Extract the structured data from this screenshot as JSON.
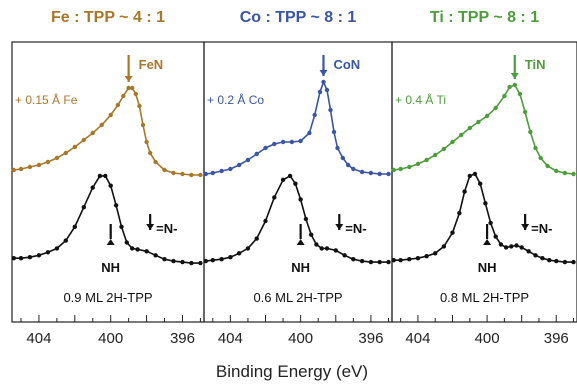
{
  "figure": {
    "xlabel": "Binding Energy (eV)"
  },
  "chart_data": [
    {
      "type": "line",
      "title": "Fe : TPP ~ 4 : 1",
      "xlabel": "Binding Energy (eV)",
      "ylabel": "",
      "xlim": [
        405.5,
        394.8
      ],
      "x_ticks": [
        "404",
        "400",
        "396"
      ],
      "x_tick_values": [
        404,
        400,
        396
      ],
      "color": "#a8782a",
      "annotations": {
        "metal": "+ 0.15 Å Fe",
        "nitride": "FeN",
        "nh": "NH",
        "imine": "=N-",
        "sample": "0.9 ML 2H-TPP"
      },
      "series": [
        {
          "name": "",
          "role": "metal-dosed",
          "x": [
            405.4,
            405.0,
            404.5,
            404.0,
            403.5,
            403.0,
            402.5,
            402.0,
            401.5,
            401.0,
            400.5,
            400.0,
            399.6,
            399.3,
            399.0,
            398.8,
            398.6,
            398.4,
            398.2,
            398.0,
            397.8,
            397.5,
            397.0,
            396.5,
            396.0,
            395.5,
            395.0
          ],
          "values": [
            0.1,
            0.11,
            0.13,
            0.15,
            0.18,
            0.22,
            0.27,
            0.33,
            0.4,
            0.47,
            0.55,
            0.65,
            0.75,
            0.84,
            0.92,
            0.92,
            0.86,
            0.74,
            0.55,
            0.38,
            0.27,
            0.18,
            0.1,
            0.07,
            0.06,
            0.05,
            0.05
          ]
        },
        {
          "name": "",
          "role": "pristine",
          "x": [
            405.4,
            405.0,
            404.5,
            404.0,
            403.5,
            403.0,
            402.5,
            402.0,
            401.5,
            401.0,
            400.6,
            400.3,
            400.0,
            399.7,
            399.4,
            399.1,
            398.8,
            398.5,
            398.0,
            397.5,
            397.0,
            396.5,
            396.0,
            395.5,
            395.0
          ],
          "values": [
            0.1,
            0.1,
            0.11,
            0.13,
            0.16,
            0.2,
            0.28,
            0.42,
            0.62,
            0.82,
            0.94,
            0.94,
            0.84,
            0.64,
            0.42,
            0.26,
            0.2,
            0.19,
            0.17,
            0.13,
            0.09,
            0.07,
            0.06,
            0.05,
            0.05
          ]
        }
      ]
    },
    {
      "type": "line",
      "title": "Co : TPP ~ 8 : 1",
      "xlabel": "Binding Energy (eV)",
      "ylabel": "",
      "xlim": [
        405.5,
        394.8
      ],
      "x_ticks": [
        "404",
        "400",
        "396"
      ],
      "x_tick_values": [
        404,
        400,
        396
      ],
      "color": "#3a55a4",
      "annotations": {
        "metal": "+ 0.2 Å Co",
        "nitride": "CoN",
        "nh": "NH",
        "imine": "=N-",
        "sample": "0.6 ML 2H-TPP"
      },
      "series": [
        {
          "name": "",
          "role": "metal-dosed",
          "x": [
            405.4,
            405.0,
            404.5,
            404.0,
            403.5,
            403.0,
            402.5,
            402.0,
            401.5,
            401.0,
            400.5,
            400.0,
            399.5,
            399.2,
            398.9,
            398.7,
            398.5,
            398.3,
            398.1,
            397.9,
            397.6,
            397.3,
            397.0,
            396.5,
            396.0,
            395.5,
            395.0
          ],
          "values": [
            0.06,
            0.07,
            0.09,
            0.11,
            0.15,
            0.2,
            0.26,
            0.32,
            0.36,
            0.38,
            0.38,
            0.39,
            0.47,
            0.65,
            0.88,
            0.98,
            0.9,
            0.7,
            0.48,
            0.32,
            0.22,
            0.15,
            0.11,
            0.08,
            0.07,
            0.06,
            0.06
          ]
        },
        {
          "name": "",
          "role": "pristine",
          "x": [
            405.4,
            405.0,
            404.5,
            404.0,
            403.5,
            403.0,
            402.5,
            402.0,
            401.5,
            401.0,
            400.6,
            400.3,
            400.0,
            399.7,
            399.4,
            399.1,
            398.8,
            398.5,
            398.0,
            397.5,
            397.0,
            396.5,
            396.0,
            395.5,
            395.0
          ],
          "values": [
            0.07,
            0.08,
            0.09,
            0.11,
            0.15,
            0.2,
            0.3,
            0.48,
            0.72,
            0.9,
            0.94,
            0.86,
            0.7,
            0.5,
            0.34,
            0.24,
            0.2,
            0.2,
            0.18,
            0.13,
            0.09,
            0.07,
            0.06,
            0.06,
            0.06
          ]
        }
      ]
    },
    {
      "type": "line",
      "title": "Ti : TPP ~ 8 : 1",
      "xlabel": "Binding Energy (eV)",
      "ylabel": "",
      "xlim": [
        405.5,
        394.8
      ],
      "x_ticks": [
        "404",
        "400",
        "396"
      ],
      "x_tick_values": [
        404,
        400,
        396
      ],
      "color": "#4e9d3c",
      "annotations": {
        "metal": "+ 0.4 Å Ti",
        "nitride": "TiN",
        "nh": "NH",
        "imine": "=N-",
        "sample": "0.8 ML 2H-TPP"
      },
      "series": [
        {
          "name": "",
          "role": "metal-dosed",
          "x": [
            405.4,
            405.0,
            404.5,
            404.0,
            403.5,
            403.0,
            402.5,
            402.0,
            401.5,
            401.0,
            400.5,
            400.0,
            399.5,
            399.0,
            398.7,
            398.4,
            398.1,
            397.8,
            397.5,
            397.2,
            396.9,
            396.5,
            396.0,
            395.5,
            395.0
          ],
          "values": [
            0.1,
            0.11,
            0.13,
            0.16,
            0.2,
            0.25,
            0.31,
            0.38,
            0.45,
            0.52,
            0.58,
            0.64,
            0.72,
            0.84,
            0.93,
            0.95,
            0.86,
            0.68,
            0.48,
            0.32,
            0.22,
            0.14,
            0.09,
            0.07,
            0.06
          ]
        },
        {
          "name": "",
          "role": "pristine",
          "x": [
            405.4,
            405.0,
            404.5,
            404.0,
            403.5,
            403.0,
            402.5,
            402.0,
            401.6,
            401.3,
            401.0,
            400.7,
            400.4,
            400.1,
            399.8,
            399.5,
            399.2,
            398.9,
            398.6,
            398.3,
            398.0,
            397.6,
            397.2,
            396.8,
            396.4,
            396.0,
            395.5,
            395.0
          ],
          "values": [
            0.08,
            0.08,
            0.09,
            0.1,
            0.12,
            0.15,
            0.22,
            0.36,
            0.56,
            0.78,
            0.94,
            0.96,
            0.86,
            0.66,
            0.46,
            0.32,
            0.24,
            0.21,
            0.22,
            0.23,
            0.21,
            0.17,
            0.13,
            0.1,
            0.08,
            0.07,
            0.06,
            0.06
          ]
        }
      ]
    }
  ]
}
